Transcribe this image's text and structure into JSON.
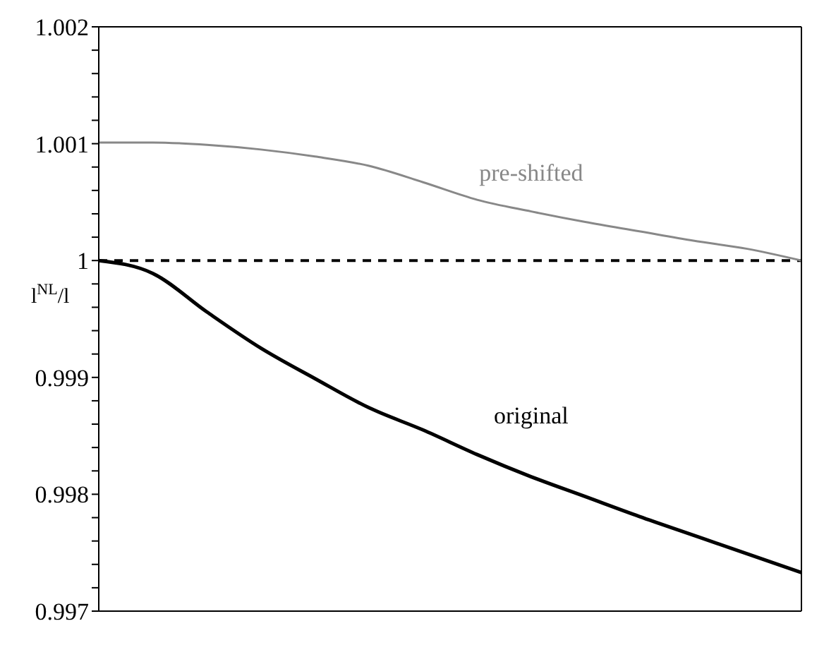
{
  "chart_data": {
    "type": "line",
    "ylabel": "l$^{NL}$/l",
    "categories": [
      null,
      null,
      null,
      null,
      null,
      null,
      null,
      null,
      null,
      null,
      null,
      null,
      null,
      null
    ],
    "series": [
      {
        "name": "pre-shifted",
        "color": "#888888",
        "values": [
          1.00101,
          1.00101,
          1.00099,
          1.00095,
          1.00089,
          1.00081,
          1.00067,
          1.00052,
          1.00042,
          1.00033,
          1.00025,
          1.00017,
          1.0001,
          1.0
        ]
      },
      {
        "name": "original",
        "color": "#000000",
        "values": [
          1.0,
          0.99989,
          0.99956,
          0.99925,
          0.99899,
          0.99874,
          0.99855,
          0.99834,
          0.99815,
          0.99798,
          0.99781,
          0.99765,
          0.99749,
          0.99733
        ]
      }
    ],
    "ylim": [
      0.997,
      1.002
    ],
    "yticks": [
      0.997,
      {
        "value": 0.9972,
        "label": null
      },
      {
        "value": 0.9974,
        "label": null
      },
      {
        "value": 0.9976,
        "label": null
      },
      {
        "value": 0.9978,
        "label": null
      },
      0.998,
      {
        "value": 0.9982,
        "label": null
      },
      {
        "value": 0.9984,
        "label": null
      },
      {
        "value": 0.9986,
        "label": null
      },
      {
        "value": 0.9988,
        "label": null
      },
      0.999,
      {
        "value": 0.9992,
        "label": null
      },
      {
        "value": 0.9994,
        "label": null
      },
      {
        "value": 0.9996,
        "label": null
      },
      {
        "value": 0.9998,
        "label": null
      },
      1,
      {
        "value": 1.0002,
        "label": null
      },
      {
        "value": 1.0004,
        "label": null
      },
      {
        "value": 1.0006,
        "label": null
      },
      {
        "value": 1.0008,
        "label": null
      },
      1.001,
      {
        "value": 1.0012,
        "label": null
      },
      {
        "value": 1.0014,
        "label": null
      },
      {
        "value": 1.0016,
        "label": null
      },
      {
        "value": 1.0018,
        "label": null
      },
      1.002
    ],
    "ref_lines": [
      {
        "axis": "y",
        "value": 1,
        "label": null,
        "color": "#000000",
        "line_style": "dashed"
      }
    ],
    "tick_labels": "y",
    "marker": "none"
  }
}
